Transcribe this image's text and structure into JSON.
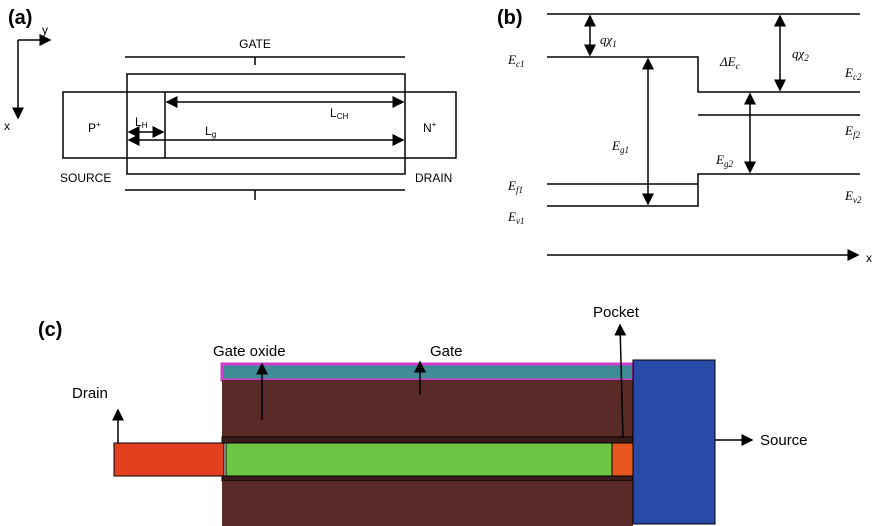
{
  "panel_a": {
    "label": "(a)",
    "axis_y": "y",
    "axis_x": "x",
    "gate": "GATE",
    "source_region": {
      "main": "P",
      "sup": "+"
    },
    "drain_region": {
      "main": "N",
      "sup": "+"
    },
    "l_h": {
      "main": "L",
      "sub": "H"
    },
    "l_g": {
      "main": "L",
      "sub": "g"
    },
    "l_ch": {
      "main": "L",
      "sub": "CH"
    },
    "source": "SOURCE",
    "drain": "DRAIN"
  },
  "panel_b": {
    "label": "(b)",
    "q_chi1": {
      "main": "qχ",
      "sub": "1"
    },
    "q_chi2": {
      "main": "qχ",
      "sub": "2"
    },
    "e_c1": {
      "main": "E",
      "sub": "c1"
    },
    "delta_e_c": {
      "main": "ΔE",
      "sub": "c"
    },
    "e_c2": {
      "main": "E",
      "sub": "c2"
    },
    "e_g1": {
      "main": "E",
      "sub": "g1"
    },
    "e_g2": {
      "main": "E",
      "sub": "g2"
    },
    "e_f2": {
      "main": "E",
      "sub": "f2"
    },
    "e_f1": {
      "main": "E",
      "sub": "f1"
    },
    "e_v1": {
      "main": "E",
      "sub": "v1"
    },
    "e_v2": {
      "main": "E",
      "sub": "v2"
    },
    "x_axis": "x"
  },
  "panel_c": {
    "label": "(c)",
    "pocket": "Pocket",
    "gate_oxide": "Gate oxide",
    "gate": "Gate",
    "drain": "Drain",
    "source": "Source"
  }
}
